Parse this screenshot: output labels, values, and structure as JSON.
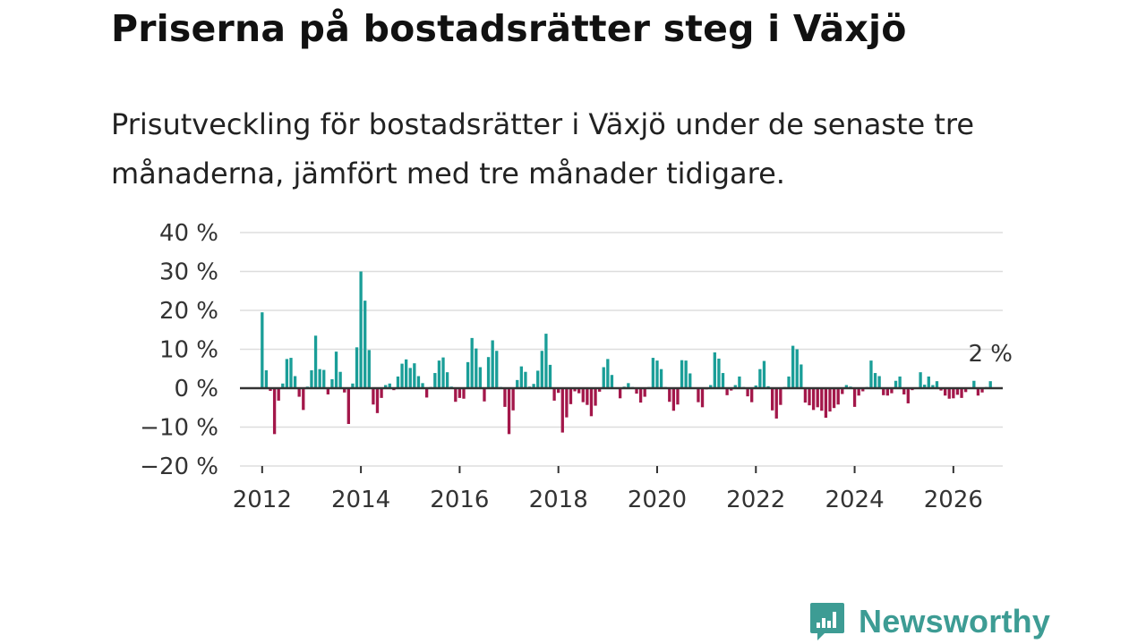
{
  "header": {
    "title": "Priserna på bostadsrätter steg i Växjö",
    "subtitle": "Prisutveckling för bostadsrätter i Växjö under de senaste tre månaderna, jämfört med tre månader tidigare."
  },
  "logo": {
    "name": "Newsworthy",
    "icon": "newsworthy-logo-icon"
  },
  "colors": {
    "positive": "#1a9e98",
    "negative": "#a3174a",
    "grid": "#dddddd",
    "zero_line": "#333333",
    "logo": "#3d9c94"
  },
  "chart_data": {
    "type": "bar",
    "title": "Priserna på bostadsrätter steg i Växjö",
    "xlabel": "",
    "ylabel": "",
    "ylim": [
      -20,
      40
    ],
    "y_ticks": [
      40,
      30,
      20,
      10,
      0,
      -10,
      -20
    ],
    "y_tick_labels": [
      "40 %",
      "30 %",
      "20 %",
      "10 %",
      "0 %",
      "−10 %",
      "−20 %"
    ],
    "x_ticks": [
      2012,
      2014,
      2016,
      2018,
      2020,
      2022,
      2024,
      2026
    ],
    "x_tick_labels": [
      "2012",
      "2014",
      "2016",
      "2018",
      "2020",
      "2022",
      "2024",
      "2026"
    ],
    "x_range": [
      2011.55,
      2027.0
    ],
    "start": 2012,
    "interval_months": 1,
    "unit": "%",
    "annotation": {
      "text": "2 %",
      "target": "last"
    },
    "values": [
      19.5,
      4.6,
      -0.7,
      -11.8,
      -3.2,
      1.2,
      7.5,
      7.8,
      3.1,
      -2.2,
      -5.6,
      0.4,
      4.6,
      13.5,
      4.9,
      4.7,
      -1.6,
      2.3,
      9.4,
      4.2,
      -1.1,
      -9.2,
      1.2,
      10.5,
      30.0,
      22.5,
      9.8,
      -4.2,
      -6.4,
      -2.5,
      0.8,
      1.2,
      -0.5,
      3.0,
      6.3,
      7.4,
      5.2,
      6.4,
      3.1,
      1.3,
      -2.4,
      0.3,
      3.9,
      7.1,
      7.9,
      4.1,
      0.4,
      -3.5,
      -2.5,
      -2.7,
      6.7,
      12.9,
      10.2,
      5.4,
      -3.4,
      8.0,
      12.3,
      9.6,
      0.3,
      -4.8,
      -11.8,
      -5.7,
      2.1,
      5.6,
      4.2,
      0.4,
      1.1,
      4.5,
      9.6,
      14.0,
      6.0,
      -3.2,
      -1.2,
      -11.4,
      -7.5,
      -4.1,
      -0.8,
      -1.3,
      -3.6,
      -4.3,
      -7.2,
      -4.5,
      -0.9,
      5.4,
      7.5,
      3.4,
      0.2,
      -2.6,
      0.4,
      1.3,
      0.3,
      -1.4,
      -3.7,
      -2.2,
      0.3,
      7.8,
      7.1,
      4.9,
      0.3,
      -3.5,
      -5.8,
      -4.2,
      7.2,
      7.1,
      3.8,
      0.2,
      -3.6,
      -4.9,
      -0.3,
      0.8,
      9.2,
      7.6,
      3.9,
      -1.8,
      -0.6,
      0.8,
      3.0,
      0.3,
      -2.1,
      -3.6,
      0.7,
      4.9,
      7.0,
      0.5,
      -5.7,
      -7.8,
      -4.3,
      0.3,
      3.0,
      10.9,
      10.0,
      6.1,
      -3.7,
      -4.4,
      -5.6,
      -4.9,
      -5.8,
      -7.6,
      -6.0,
      -5.1,
      -4.2,
      -1.5,
      0.8,
      0.4,
      -4.8,
      -1.9,
      -0.8,
      0.3,
      7.1,
      3.9,
      3.1,
      -1.8,
      -1.9,
      -1.3,
      1.9,
      3.0,
      -1.6,
      -3.9,
      -0.5,
      0.2,
      4.1,
      0.9,
      3.0,
      0.8,
      1.8,
      -0.6,
      -1.9,
      -2.7,
      -2.6,
      -1.7,
      -2.5,
      -1.0,
      0.2,
      1.9,
      -1.9,
      -1.1,
      0.3,
      1.8
    ]
  }
}
